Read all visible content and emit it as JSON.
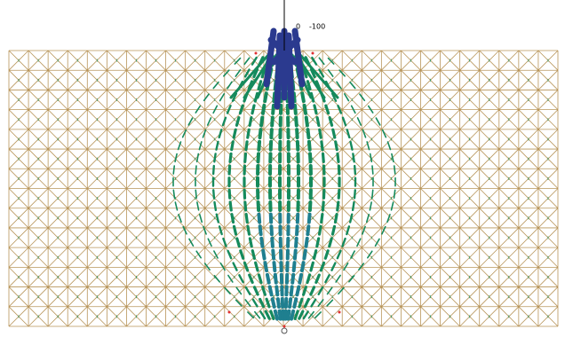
{
  "load_labels": [
    "0",
    "-100"
  ]
}
